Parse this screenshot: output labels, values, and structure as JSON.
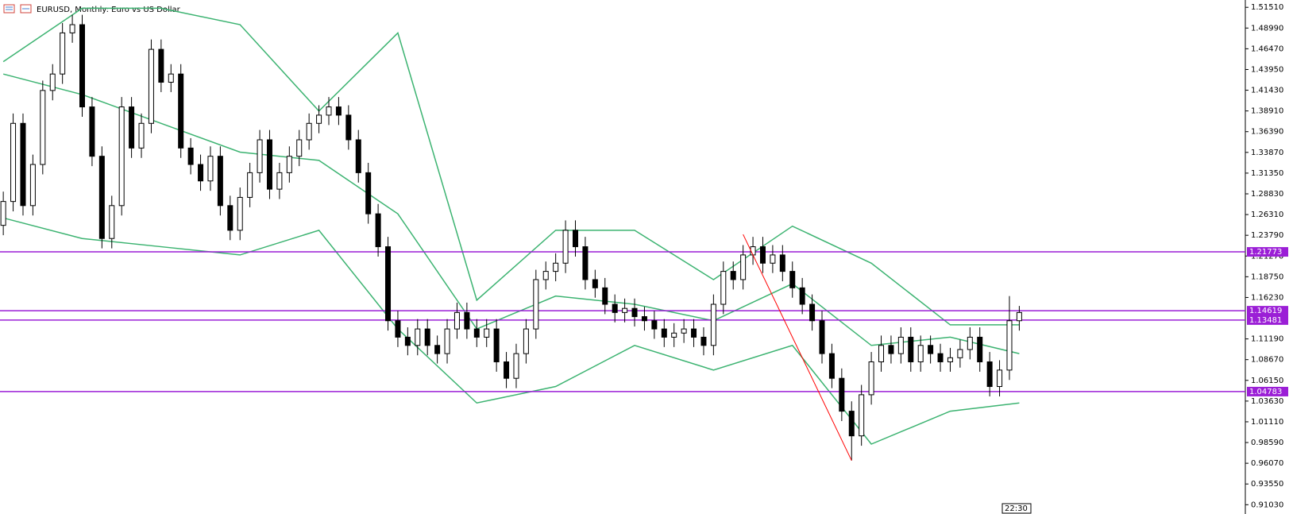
{
  "chart_data": {
    "type": "candlestick",
    "title": "EURUSD, Monthly:  Euro vs US Dollar",
    "timer": "22:30",
    "ylim": [
      0.899,
      1.524
    ],
    "yticks": [
      {
        "value": 1.5151,
        "label": "1.51510"
      },
      {
        "value": 1.4899,
        "label": "1.48990"
      },
      {
        "value": 1.4647,
        "label": "1.46470"
      },
      {
        "value": 1.4395,
        "label": "1.43950"
      },
      {
        "value": 1.4143,
        "label": "1.41430"
      },
      {
        "value": 1.3891,
        "label": "1.38910"
      },
      {
        "value": 1.3639,
        "label": "1.36390"
      },
      {
        "value": 1.3387,
        "label": "1.33870"
      },
      {
        "value": 1.3135,
        "label": "1.31350"
      },
      {
        "value": 1.2883,
        "label": "1.28830"
      },
      {
        "value": 1.2631,
        "label": "1.26310"
      },
      {
        "value": 1.2379,
        "label": "1.23790"
      },
      {
        "value": 1.2127,
        "label": "1.21270"
      },
      {
        "value": 1.1875,
        "label": "1.18750"
      },
      {
        "value": 1.1623,
        "label": "1.16230"
      },
      {
        "value": 1.1119,
        "label": "1.11190"
      },
      {
        "value": 1.0867,
        "label": "1.08670"
      },
      {
        "value": 1.0615,
        "label": "1.06150"
      },
      {
        "value": 1.0363,
        "label": "1.03630"
      },
      {
        "value": 1.0111,
        "label": "1.01110"
      },
      {
        "value": 0.9859,
        "label": "0.98590"
      },
      {
        "value": 0.9607,
        "label": "0.96070"
      },
      {
        "value": 0.9355,
        "label": "0.93550"
      },
      {
        "value": 0.9103,
        "label": "0.91030"
      }
    ],
    "up_color": "#ffffff",
    "down_color": "#000000",
    "candles": [
      [
        1.25,
        1.291,
        1.238,
        1.279
      ],
      [
        1.279,
        1.386,
        1.267,
        1.374
      ],
      [
        1.374,
        1.386,
        1.262,
        1.274
      ],
      [
        1.274,
        1.336,
        1.262,
        1.324
      ],
      [
        1.324,
        1.426,
        1.312,
        1.414
      ],
      [
        1.414,
        1.446,
        1.402,
        1.434
      ],
      [
        1.434,
        1.496,
        1.422,
        1.484
      ],
      [
        1.484,
        1.506,
        1.472,
        1.494
      ],
      [
        1.494,
        1.506,
        1.382,
        1.394
      ],
      [
        1.394,
        1.406,
        1.322,
        1.334
      ],
      [
        1.334,
        1.346,
        1.222,
        1.234
      ],
      [
        1.234,
        1.286,
        1.222,
        1.274
      ],
      [
        1.274,
        1.406,
        1.262,
        1.394
      ],
      [
        1.394,
        1.406,
        1.332,
        1.344
      ],
      [
        1.344,
        1.386,
        1.332,
        1.374
      ],
      [
        1.374,
        1.476,
        1.362,
        1.464
      ],
      [
        1.464,
        1.476,
        1.412,
        1.424
      ],
      [
        1.424,
        1.446,
        1.412,
        1.434
      ],
      [
        1.434,
        1.446,
        1.332,
        1.344
      ],
      [
        1.344,
        1.356,
        1.312,
        1.324
      ],
      [
        1.324,
        1.336,
        1.292,
        1.304
      ],
      [
        1.304,
        1.346,
        1.292,
        1.334
      ],
      [
        1.334,
        1.346,
        1.262,
        1.274
      ],
      [
        1.274,
        1.286,
        1.232,
        1.244
      ],
      [
        1.244,
        1.296,
        1.232,
        1.284
      ],
      [
        1.284,
        1.326,
        1.272,
        1.314
      ],
      [
        1.314,
        1.366,
        1.302,
        1.354
      ],
      [
        1.354,
        1.366,
        1.282,
        1.294
      ],
      [
        1.294,
        1.326,
        1.282,
        1.314
      ],
      [
        1.314,
        1.346,
        1.302,
        1.334
      ],
      [
        1.334,
        1.366,
        1.322,
        1.354
      ],
      [
        1.354,
        1.386,
        1.342,
        1.374
      ],
      [
        1.374,
        1.396,
        1.362,
        1.384
      ],
      [
        1.384,
        1.406,
        1.372,
        1.394
      ],
      [
        1.394,
        1.406,
        1.372,
        1.384
      ],
      [
        1.384,
        1.396,
        1.342,
        1.354
      ],
      [
        1.354,
        1.366,
        1.302,
        1.314
      ],
      [
        1.314,
        1.326,
        1.252,
        1.264
      ],
      [
        1.264,
        1.276,
        1.212,
        1.224
      ],
      [
        1.224,
        1.236,
        1.122,
        1.134
      ],
      [
        1.134,
        1.146,
        1.102,
        1.114
      ],
      [
        1.114,
        1.126,
        1.092,
        1.104
      ],
      [
        1.104,
        1.136,
        1.092,
        1.124
      ],
      [
        1.124,
        1.136,
        1.092,
        1.104
      ],
      [
        1.104,
        1.116,
        1.082,
        1.094
      ],
      [
        1.094,
        1.136,
        1.082,
        1.124
      ],
      [
        1.124,
        1.156,
        1.112,
        1.144
      ],
      [
        1.144,
        1.156,
        1.112,
        1.124
      ],
      [
        1.124,
        1.136,
        1.102,
        1.114
      ],
      [
        1.114,
        1.136,
        1.102,
        1.124
      ],
      [
        1.124,
        1.136,
        1.072,
        1.084
      ],
      [
        1.084,
        1.096,
        1.052,
        1.064
      ],
      [
        1.064,
        1.106,
        1.052,
        1.094
      ],
      [
        1.094,
        1.136,
        1.082,
        1.124
      ],
      [
        1.124,
        1.196,
        1.112,
        1.184
      ],
      [
        1.184,
        1.206,
        1.172,
        1.194
      ],
      [
        1.194,
        1.216,
        1.182,
        1.204
      ],
      [
        1.204,
        1.256,
        1.192,
        1.244
      ],
      [
        1.244,
        1.256,
        1.212,
        1.224
      ],
      [
        1.224,
        1.236,
        1.172,
        1.184
      ],
      [
        1.184,
        1.196,
        1.162,
        1.174
      ],
      [
        1.174,
        1.186,
        1.142,
        1.154
      ],
      [
        1.154,
        1.166,
        1.132,
        1.144
      ],
      [
        1.144,
        1.161,
        1.132,
        1.149
      ],
      [
        1.149,
        1.161,
        1.127,
        1.139
      ],
      [
        1.139,
        1.151,
        1.122,
        1.134
      ],
      [
        1.134,
        1.146,
        1.112,
        1.124
      ],
      [
        1.124,
        1.136,
        1.102,
        1.114
      ],
      [
        1.114,
        1.131,
        1.102,
        1.119
      ],
      [
        1.119,
        1.136,
        1.107,
        1.124
      ],
      [
        1.124,
        1.136,
        1.102,
        1.114
      ],
      [
        1.114,
        1.126,
        1.092,
        1.104
      ],
      [
        1.104,
        1.166,
        1.092,
        1.154
      ],
      [
        1.154,
        1.206,
        1.142,
        1.194
      ],
      [
        1.194,
        1.206,
        1.172,
        1.184
      ],
      [
        1.184,
        1.226,
        1.172,
        1.214
      ],
      [
        1.214,
        1.236,
        1.202,
        1.224
      ],
      [
        1.224,
        1.236,
        1.192,
        1.204
      ],
      [
        1.204,
        1.226,
        1.192,
        1.214
      ],
      [
        1.214,
        1.226,
        1.182,
        1.194
      ],
      [
        1.194,
        1.206,
        1.162,
        1.174
      ],
      [
        1.174,
        1.186,
        1.142,
        1.154
      ],
      [
        1.154,
        1.166,
        1.122,
        1.134
      ],
      [
        1.134,
        1.146,
        1.082,
        1.094
      ],
      [
        1.094,
        1.106,
        1.052,
        1.064
      ],
      [
        1.064,
        1.076,
        1.012,
        1.024
      ],
      [
        1.024,
        1.036,
        0.964,
        0.994
      ],
      [
        0.994,
        1.056,
        0.982,
        1.044
      ],
      [
        1.044,
        1.096,
        1.032,
        1.084
      ],
      [
        1.084,
        1.116,
        1.072,
        1.104
      ],
      [
        1.104,
        1.116,
        1.082,
        1.094
      ],
      [
        1.094,
        1.126,
        1.082,
        1.114
      ],
      [
        1.114,
        1.126,
        1.072,
        1.084
      ],
      [
        1.084,
        1.116,
        1.072,
        1.104
      ],
      [
        1.104,
        1.116,
        1.082,
        1.094
      ],
      [
        1.094,
        1.106,
        1.072,
        1.084
      ],
      [
        1.084,
        1.101,
        1.072,
        1.089
      ],
      [
        1.089,
        1.111,
        1.077,
        1.099
      ],
      [
        1.099,
        1.126,
        1.087,
        1.114
      ],
      [
        1.114,
        1.126,
        1.072,
        1.084
      ],
      [
        1.084,
        1.096,
        1.042,
        1.054
      ],
      [
        1.054,
        1.086,
        1.042,
        1.074
      ],
      [
        1.074,
        1.164,
        1.062,
        1.134
      ],
      [
        1.134,
        1.152,
        1.122,
        1.144
      ]
    ],
    "bands": {
      "color": "#3cb371",
      "x": [
        0,
        8,
        16,
        24,
        32,
        40,
        48,
        56,
        64,
        72,
        80,
        88,
        96,
        103
      ],
      "upper": [
        1.449,
        1.514,
        1.514,
        1.494,
        1.389,
        1.484,
        1.159,
        1.244,
        1.244,
        1.184,
        1.249,
        1.204,
        1.129,
        1.129
      ],
      "middle": [
        1.434,
        1.409,
        1.374,
        1.339,
        1.329,
        1.264,
        1.124,
        1.164,
        1.154,
        1.134,
        1.179,
        1.104,
        1.114,
        1.094
      ],
      "lower": [
        1.259,
        1.234,
        1.224,
        1.214,
        1.244,
        1.124,
        1.034,
        1.054,
        1.104,
        1.074,
        1.104,
        0.984,
        1.024,
        1.034
      ]
    },
    "trendline": {
      "color": "#ff0000",
      "x": [
        75,
        86
      ],
      "y": [
        1.239,
        0.964
      ]
    },
    "levels": [
      1.21773,
      1.14619,
      1.13481,
      1.04783
    ],
    "level_color": "#9b1fd6"
  }
}
